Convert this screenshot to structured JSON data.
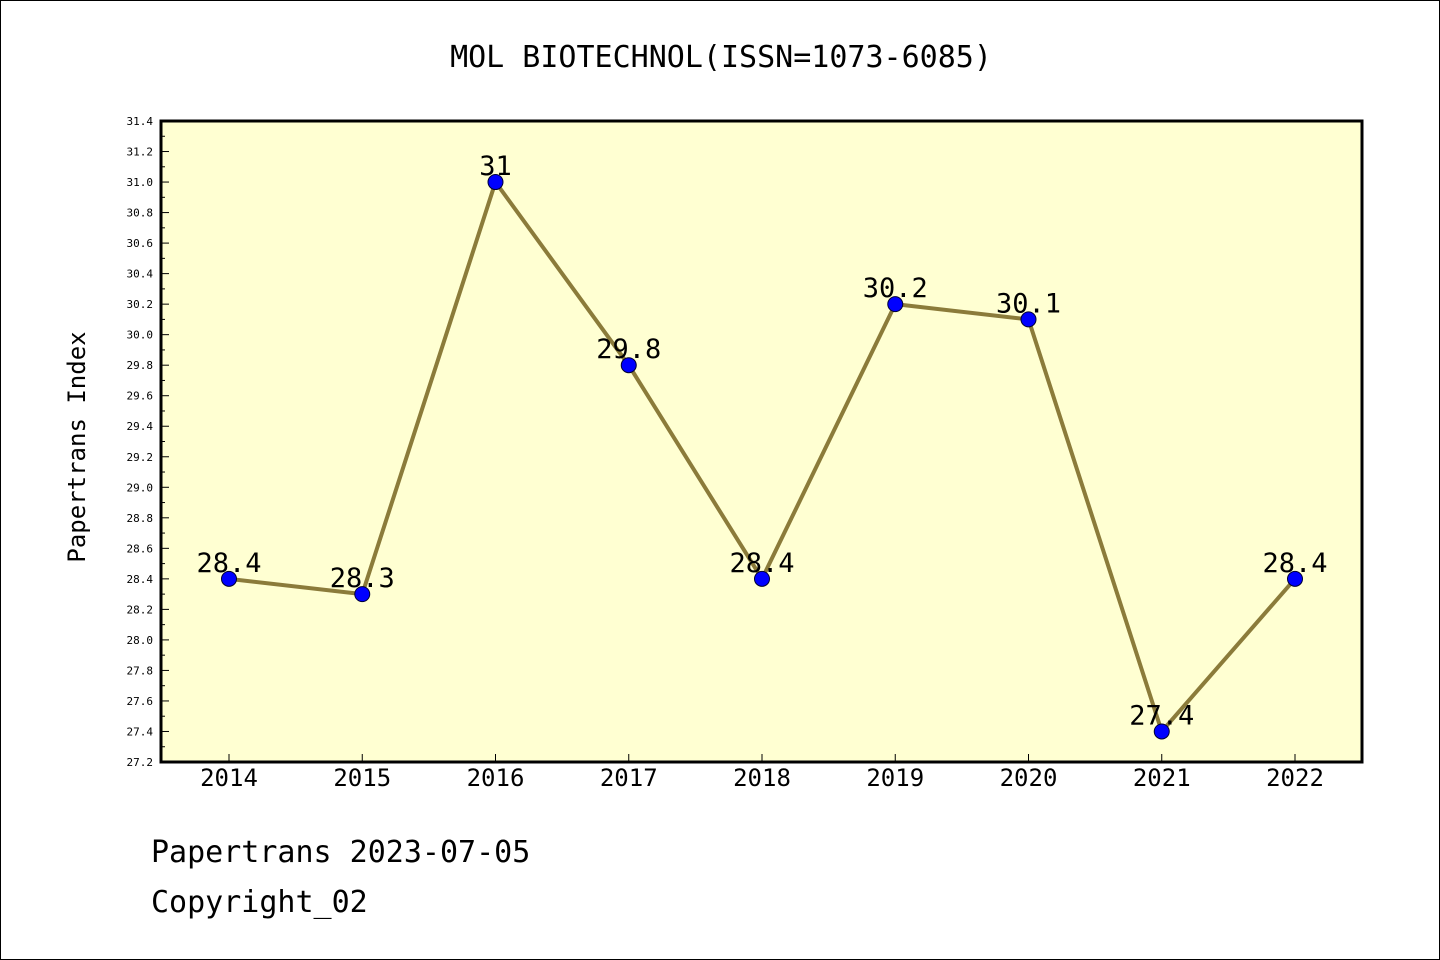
{
  "chart_data": {
    "type": "line",
    "title": "MOL BIOTECHNOL(ISSN=1073-6085)",
    "xlabel": "",
    "ylabel": "Papertrans Index",
    "categories": [
      "2014",
      "2015",
      "2016",
      "2017",
      "2018",
      "2019",
      "2020",
      "2021",
      "2022"
    ],
    "series": [
      {
        "values": [
          28.4,
          28.3,
          31.0,
          29.8,
          28.4,
          30.2,
          30.1,
          27.4,
          28.4
        ],
        "labels": [
          "28.4",
          "28.3",
          "31",
          "29.8",
          "28.4",
          "30.2",
          "30.1",
          "27.4",
          "28.4"
        ]
      }
    ],
    "ylim": [
      27.2,
      31.4
    ],
    "yticks": [
      "27.2",
      "27.4",
      "27.6",
      "27.8",
      "28.0",
      "28.2",
      "28.4",
      "28.6",
      "28.8",
      "29.0",
      "29.2",
      "29.4",
      "29.6",
      "29.8",
      "30.0",
      "30.2",
      "30.4",
      "30.6",
      "30.8",
      "31.0",
      "31.2",
      "31.4"
    ],
    "grid": false,
    "colors": {
      "plot_background": "#ffffd2",
      "line": "#8b7b3a",
      "marker": "#0000ff"
    }
  },
  "footer": {
    "line1": "Papertrans 2023-07-05",
    "line2": "Copyright_02"
  }
}
